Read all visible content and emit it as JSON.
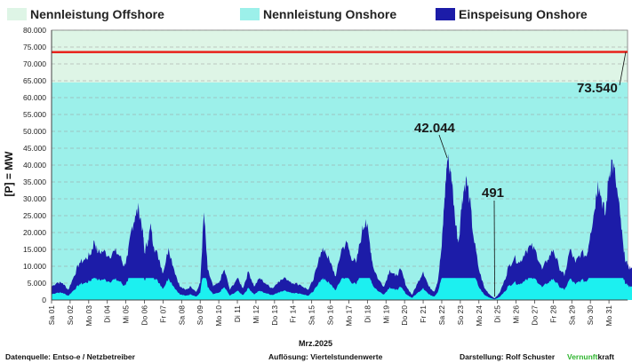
{
  "chart_data": {
    "type": "area",
    "ylabel": "[P] = MW",
    "xlabel": "Mrz.2025",
    "ylim": [
      0,
      80000
    ],
    "y_ticks": [
      "0",
      "5.000",
      "10.000",
      "15.000",
      "20.000",
      "25.000",
      "30.000",
      "35.000",
      "40.000",
      "45.000",
      "50.000",
      "55.000",
      "60.000",
      "65.000",
      "70.000",
      "75.000",
      "80.000"
    ],
    "x_ticks": [
      "Sa 01",
      "So 02",
      "Mo 03",
      "Di 04",
      "Mi 05",
      "Do 06",
      "Fr 07",
      "Sa 08",
      "So 09",
      "Mo 10",
      "Di 11",
      "Mi 12",
      "Do 13",
      "Fr 14",
      "Sa 15",
      "So 16",
      "Mo 17",
      "Di 18",
      "Mi 19",
      "Do 20",
      "Fr 21",
      "Sa 22",
      "So 23",
      "Mo 24",
      "Di 25",
      "Mi 26",
      "Do 27",
      "Fr 28",
      "Sa 29",
      "So 30",
      "Mo 31"
    ],
    "legend": [
      {
        "name": "Nennleistung Offshore",
        "color": "#def5e6"
      },
      {
        "name": "Nennleistung Onshore",
        "color": "#9cf0ea"
      },
      {
        "name": "Einspeisung Onshore",
        "color": "#1c1ca8"
      }
    ],
    "series": [
      {
        "name": "Nennleistung Offshore",
        "color": "#def5e6",
        "values_range": [
          73500,
          73540
        ]
      },
      {
        "name": "Nennleistung Onshore",
        "color": "#9cf0ea",
        "values_range": [
          64500,
          64900
        ]
      },
      {
        "name": "Einspeisung Onshore",
        "color": "#1c1ca8",
        "envelope": [
          [
            0,
            4000
          ],
          [
            0.3,
            5200
          ],
          [
            0.6,
            5000
          ],
          [
            0.9,
            3000
          ],
          [
            1.2,
            7000
          ],
          [
            1.5,
            11000
          ],
          [
            1.8,
            12000
          ],
          [
            2.1,
            13500
          ],
          [
            2.3,
            17500
          ],
          [
            2.5,
            14000
          ],
          [
            2.8,
            14500
          ],
          [
            3.1,
            13000
          ],
          [
            3.4,
            14500
          ],
          [
            3.7,
            13000
          ],
          [
            3.9,
            10000
          ],
          [
            4.1,
            13000
          ],
          [
            4.3,
            21000
          ],
          [
            4.5,
            25000
          ],
          [
            4.7,
            27000
          ],
          [
            4.9,
            21000
          ],
          [
            5.0,
            14000
          ],
          [
            5.2,
            18000
          ],
          [
            5.35,
            22000
          ],
          [
            5.5,
            16000
          ],
          [
            5.8,
            12000
          ],
          [
            6.0,
            8000
          ],
          [
            6.3,
            15500
          ],
          [
            6.6,
            9000
          ],
          [
            6.9,
            4000
          ],
          [
            7.2,
            3000
          ],
          [
            7.5,
            4000
          ],
          [
            7.8,
            2500
          ],
          [
            8.0,
            5000
          ],
          [
            8.2,
            26000
          ],
          [
            8.4,
            9000
          ],
          [
            8.7,
            4000
          ],
          [
            9.0,
            5000
          ],
          [
            9.3,
            9000
          ],
          [
            9.6,
            3000
          ],
          [
            10.0,
            6500
          ],
          [
            10.3,
            3500
          ],
          [
            10.6,
            8500
          ],
          [
            10.9,
            4000
          ],
          [
            11.2,
            6500
          ],
          [
            11.6,
            4500
          ],
          [
            11.9,
            3500
          ],
          [
            12.2,
            5500
          ],
          [
            12.6,
            6500
          ],
          [
            13.0,
            5000
          ],
          [
            13.4,
            4500
          ],
          [
            13.8,
            3000
          ],
          [
            14.1,
            6000
          ],
          [
            14.4,
            13000
          ],
          [
            14.7,
            15000
          ],
          [
            15.0,
            11000
          ],
          [
            15.3,
            7000
          ],
          [
            15.6,
            15000
          ],
          [
            15.9,
            17000
          ],
          [
            16.1,
            13000
          ],
          [
            16.4,
            11000
          ],
          [
            16.7,
            20000
          ],
          [
            16.9,
            24000
          ],
          [
            17.1,
            18000
          ],
          [
            17.3,
            10000
          ],
          [
            17.6,
            6000
          ],
          [
            17.9,
            4000
          ],
          [
            18.2,
            9000
          ],
          [
            18.5,
            7000
          ],
          [
            18.8,
            9000
          ],
          [
            19.1,
            4000
          ],
          [
            19.4,
            1500
          ],
          [
            19.7,
            5000
          ],
          [
            20.0,
            8500
          ],
          [
            20.3,
            4000
          ],
          [
            20.6,
            2500
          ],
          [
            20.8,
            6000
          ],
          [
            21.0,
            16000
          ],
          [
            21.15,
            30000
          ],
          [
            21.3,
            42044
          ],
          [
            21.5,
            38000
          ],
          [
            21.7,
            25000
          ],
          [
            21.9,
            17000
          ],
          [
            22.1,
            30000
          ],
          [
            22.3,
            36000
          ],
          [
            22.5,
            30000
          ],
          [
            22.7,
            19000
          ],
          [
            23.0,
            9000
          ],
          [
            23.3,
            3500
          ],
          [
            23.6,
            1500
          ],
          [
            23.85,
            491
          ],
          [
            24.1,
            2000
          ],
          [
            24.4,
            6000
          ],
          [
            24.6,
            10000
          ],
          [
            24.9,
            12500
          ],
          [
            25.2,
            11000
          ],
          [
            25.5,
            14500
          ],
          [
            25.8,
            16000
          ],
          [
            26.1,
            14000
          ],
          [
            26.4,
            9000
          ],
          [
            26.7,
            12000
          ],
          [
            27.0,
            15000
          ],
          [
            27.3,
            10000
          ],
          [
            27.6,
            7000
          ],
          [
            27.9,
            15000
          ],
          [
            28.2,
            11000
          ],
          [
            28.5,
            14000
          ],
          [
            28.8,
            13000
          ],
          [
            29.0,
            20000
          ],
          [
            29.2,
            26000
          ],
          [
            29.4,
            35500
          ],
          [
            29.6,
            30000
          ],
          [
            29.8,
            25000
          ],
          [
            30.0,
            37000
          ],
          [
            30.15,
            41500
          ],
          [
            30.35,
            36000
          ],
          [
            30.6,
            25000
          ],
          [
            30.8,
            14000
          ],
          [
            31.0,
            10000
          ],
          [
            31.2,
            9500
          ],
          [
            31.4,
            8500
          ]
        ]
      }
    ],
    "annotations": [
      {
        "label": "42.044",
        "x": 21.3,
        "y": 42044
      },
      {
        "label": "491",
        "x": 23.85,
        "y": 491
      },
      {
        "label": "73.540",
        "x": 31.4,
        "y": 73540
      }
    ]
  },
  "footer": {
    "source": "Datenquelle:  Entso-e  / Netzbetreiber",
    "resolution": "Auflösung: Viertelstundenwerte",
    "author": "Darstellung:  Rolf Schuster",
    "brand_green": "Vernunft",
    "brand_rest": "kraft"
  }
}
